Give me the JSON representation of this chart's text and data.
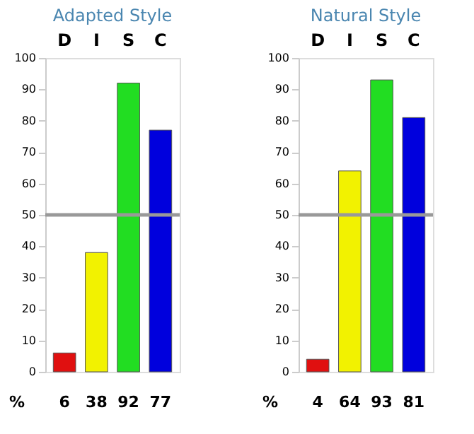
{
  "chart_data": [
    {
      "type": "bar",
      "title": "Adapted Style",
      "categories": [
        "D",
        "I",
        "S",
        "C"
      ],
      "values": [
        6,
        38,
        92,
        77
      ],
      "colors": [
        "#e01010",
        "#f2f200",
        "#22dd22",
        "#0000dd"
      ],
      "ylim": [
        0,
        100
      ],
      "yticks": [
        0,
        10,
        20,
        30,
        40,
        50,
        60,
        70,
        80,
        90,
        100
      ],
      "ref_lines": [
        {
          "axis": "y",
          "value": 50,
          "color": "#999999"
        }
      ],
      "data_labels": true,
      "annotations": [
        "%"
      ]
    },
    {
      "type": "bar",
      "title": "Natural Style",
      "categories": [
        "D",
        "I",
        "S",
        "C"
      ],
      "values": [
        4,
        64,
        93,
        81
      ],
      "colors": [
        "#e01010",
        "#f2f200",
        "#22dd22",
        "#0000dd"
      ],
      "ylim": [
        0,
        100
      ],
      "yticks": [
        0,
        10,
        20,
        30,
        40,
        50,
        60,
        70,
        80,
        90,
        100
      ],
      "ref_lines": [
        {
          "axis": "y",
          "value": 50,
          "color": "#999999"
        }
      ],
      "data_labels": true,
      "annotations": [
        "%"
      ]
    }
  ]
}
